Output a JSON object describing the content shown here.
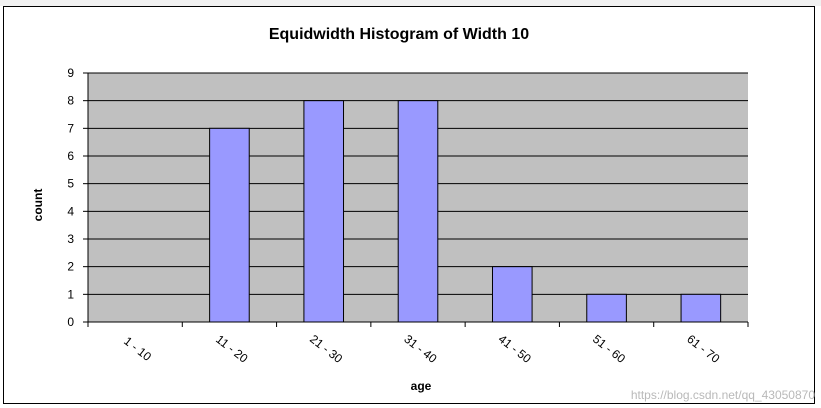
{
  "chart_data": {
    "type": "bar",
    "title": "Equidwidth Histogram of Width 10",
    "xlabel": "age",
    "ylabel": "count",
    "categories": [
      "1 - 10",
      "11 - 20",
      "21 - 30",
      "31 - 40",
      "41 - 50",
      "51 - 60",
      "61 - 70"
    ],
    "values": [
      0,
      7,
      8,
      8,
      2,
      1,
      1
    ],
    "ylim": [
      0,
      9
    ],
    "yticks": [
      "0",
      "1",
      "2",
      "3",
      "4",
      "5",
      "6",
      "7",
      "8",
      "9"
    ],
    "grid": true,
    "legend": "none",
    "colors": {
      "bar_fill": "#9999ff",
      "plot_background": "#c0c0c0",
      "gridline": "#000000"
    }
  },
  "watermark": "https://blog.csdn.net/qq_43050870"
}
